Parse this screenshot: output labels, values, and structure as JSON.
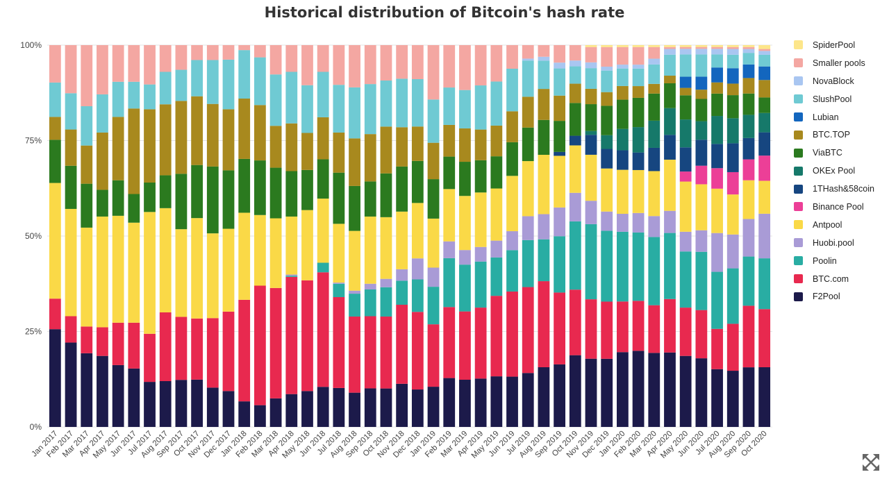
{
  "chart_data": {
    "type": "bar",
    "stacked": true,
    "normalized": true,
    "title": "Historical distribution of Bitcoin's hash rate",
    "xlabel": "",
    "ylabel": "",
    "ylim": [
      0,
      100
    ],
    "yticks": [
      "0%",
      "25%",
      "50%",
      "75%",
      "100%"
    ],
    "grid": true,
    "legend_position": "right",
    "categories": [
      "Jan 2017",
      "Feb 2017",
      "Mar 2017",
      "Apr 2017",
      "May 2017",
      "Jun 2017",
      "Jul 2017",
      "Aug 2017",
      "Sep 2017",
      "Oct 2017",
      "Nov 2017",
      "Dec 2017",
      "Jan 2018",
      "Feb 2018",
      "Mar 2018",
      "Apr 2018",
      "May 2018",
      "Jun 2018",
      "Jul 2018",
      "Aug 2018",
      "Sep 2018",
      "Oct 2018",
      "Nov 2018",
      "Dec 2018",
      "Jan 2019",
      "Feb 2019",
      "Mar 2019",
      "Apr 2019",
      "May 2019",
      "Jun 2019",
      "Jul 2019",
      "Aug 2019",
      "Sep 2019",
      "Oct 2019",
      "Nov 2019",
      "Dec 2019",
      "Jan 2020",
      "Feb 2020",
      "Mar 2020",
      "Apr 2020",
      "May 2020",
      "Jun 2020",
      "Jul 2020",
      "Aug 2020",
      "Sep 2020",
      "Oct 2020"
    ],
    "series": [
      {
        "name": "F2Pool",
        "color": "#1c1a4a",
        "values": [
          25.6,
          22.1,
          19.3,
          18.6,
          16.2,
          15.3,
          11.8,
          12.0,
          12.4,
          12.4,
          10.3,
          9.4,
          6.7,
          5.7,
          7.5,
          8.6,
          9.4,
          10.5,
          10.2,
          9.0,
          10.1,
          10.1,
          11.3,
          9.8,
          10.5,
          12.8,
          12.3,
          12.6,
          13.2,
          13.0,
          14.0,
          15.4,
          16.1,
          18.6,
          17.8,
          17.4,
          19.2,
          19.5,
          19.1,
          19.5,
          19.1,
          18.5,
          15.5,
          14.6,
          15.4,
          15.4
        ]
      },
      {
        "name": "BTC.com",
        "color": "#e8294f",
        "values": [
          8.0,
          6.9,
          7.0,
          7.5,
          11.1,
          12.0,
          12.6,
          18.0,
          16.6,
          16.0,
          18.2,
          20.8,
          26.6,
          31.3,
          29.0,
          30.7,
          29.0,
          30.0,
          23.8,
          20.0,
          18.9,
          18.9,
          20.7,
          20.3,
          16.3,
          18.6,
          17.8,
          18.5,
          21.0,
          22.0,
          22.3,
          22.2,
          18.5,
          17.0,
          15.5,
          14.6,
          13.0,
          12.8,
          12.3,
          14.0,
          13.0,
          13.0,
          10.8,
          12.2,
          15.9,
          15.0
        ]
      },
      {
        "name": "Poolin",
        "color": "#29ada3",
        "values": [
          0,
          0,
          0,
          0,
          0,
          0,
          0,
          0,
          0,
          0,
          0,
          0,
          0,
          0,
          0,
          0.3,
          0,
          2.5,
          3.5,
          6.0,
          7.0,
          7.7,
          6.3,
          8.5,
          9.8,
          12.8,
          12.2,
          12.0,
          10.0,
          10.7,
          12.2,
          10.8,
          14.5,
          17.7,
          19.6,
          18.1,
          17.9,
          17.5,
          17.6,
          17.3,
          15.1,
          15.7,
          15.3,
          14.4,
          12.7,
          13.1
        ]
      },
      {
        "name": "Huobi.pool",
        "color": "#a99bd6",
        "values": [
          0,
          0,
          0,
          0,
          0,
          0,
          0,
          0,
          0,
          0,
          0,
          0,
          0,
          0,
          0,
          0.3,
          0,
          0,
          0.3,
          0.8,
          1.5,
          2.2,
          3.0,
          5.5,
          5.0,
          4.4,
          3.8,
          3.8,
          4.4,
          4.9,
          6.2,
          6.5,
          7.4,
          7.4,
          6.1,
          4.9,
          4.6,
          5.0,
          5.4,
          5.8,
          5.3,
          5.8,
          10.4,
          8.8,
          9.7,
          11.5
        ]
      },
      {
        "name": "Antpool",
        "color": "#fad947",
        "values": [
          30.3,
          28.1,
          25.9,
          29.0,
          28.0,
          26.2,
          31.9,
          27.3,
          23.1,
          26.3,
          22.2,
          21.7,
          22.8,
          18.5,
          18.3,
          15.2,
          18.4,
          16.8,
          15.4,
          15.7,
          17.6,
          16.2,
          15.1,
          14.5,
          12.8,
          13.7,
          14.1,
          14.2,
          13.6,
          14.3,
          14.3,
          15.3,
          13.3,
          12.3,
          12.0,
          11.0,
          11.3,
          11.0,
          11.6,
          13.4,
          13.5,
          12.4,
          11.9,
          10.4,
          10.0,
          8.5
        ]
      },
      {
        "name": "Binance Pool",
        "color": "#ec3f97",
        "values": [
          0,
          0,
          0,
          0,
          0,
          0,
          0,
          0,
          0,
          0,
          0,
          0,
          0,
          0,
          0,
          0,
          0,
          0,
          0,
          0,
          0,
          0,
          0,
          0,
          0,
          0,
          0,
          0,
          0,
          0,
          0,
          0,
          0,
          0,
          0,
          0,
          0,
          0,
          0,
          0,
          2.7,
          5.0,
          5.5,
          5.8,
          5.4,
          6.5
        ]
      },
      {
        "name": "1THash&58coin",
        "color": "#164680",
        "values": [
          0,
          0,
          0,
          0,
          0,
          0,
          0,
          0,
          0,
          0,
          0,
          0,
          0,
          0,
          0,
          0,
          0,
          0,
          0,
          0,
          0,
          0,
          0,
          0,
          0,
          0,
          0,
          0,
          0,
          0,
          0,
          0,
          1.0,
          2.5,
          5.2,
          5.0,
          5.0,
          4.5,
          6.0,
          6.5,
          6.5,
          7.0,
          6.5,
          7.5,
          5.5,
          6.0
        ]
      },
      {
        "name": "OKEx Pool",
        "color": "#16796a",
        "values": [
          0,
          0,
          0,
          0,
          0,
          0,
          0,
          0,
          0,
          0,
          0,
          0,
          0,
          0,
          0,
          0,
          0,
          0,
          0,
          0,
          0,
          0,
          0,
          0,
          0,
          0,
          0,
          0,
          0,
          0,
          0,
          0,
          0,
          0,
          1.0,
          3.5,
          5.5,
          6.5,
          7.0,
          7.0,
          7.5,
          5.0,
          7.5,
          6.5,
          6.0,
          5.0
        ]
      },
      {
        "name": "ViaBTC",
        "color": "#2b7a1f",
        "values": [
          11.3,
          11.3,
          11.5,
          7.0,
          9.3,
          7.5,
          7.7,
          8.6,
          14.6,
          13.9,
          17.5,
          15.3,
          14.1,
          14.3,
          13.3,
          11.9,
          10.5,
          10.3,
          13.4,
          11.8,
          9.2,
          11.5,
          11.8,
          11.0,
          10.3,
          8.5,
          8.9,
          8.4,
          8.4,
          8.7,
          8.7,
          9.0,
          8.0,
          8.5,
          7.0,
          7.5,
          7.5,
          7.5,
          7.0,
          6.5,
          6.5,
          6.0,
          6.0,
          6.0,
          5.5,
          4.0
        ]
      },
      {
        "name": "BTC.TOP",
        "color": "#a8891e",
        "values": [
          6.0,
          9.5,
          10.0,
          15.0,
          16.6,
          22.4,
          19.2,
          18.6,
          19.2,
          18.0,
          16.4,
          16.0,
          15.8,
          14.5,
          11.0,
          12.5,
          9.7,
          11.0,
          10.5,
          12.5,
          12.4,
          12.3,
          10.3,
          9.0,
          9.5,
          8.3,
          8.7,
          8.0,
          8.0,
          8.0,
          8.0,
          8.0,
          6.5,
          5.0,
          4.0,
          3.5,
          3.5,
          3.0,
          2.5,
          2.0,
          2.0,
          2.5,
          3.0,
          3.0,
          4.0,
          4.5
        ]
      },
      {
        "name": "Lubian",
        "color": "#1366be",
        "values": [
          0,
          0,
          0,
          0,
          0,
          0,
          0,
          0,
          0,
          0,
          0,
          0,
          0,
          0,
          0,
          0,
          0,
          0,
          0,
          0,
          0,
          0,
          0,
          0,
          0,
          0,
          0,
          0,
          0,
          0,
          0,
          0,
          0,
          0,
          0,
          0,
          0,
          0,
          0,
          0,
          3.0,
          3.5,
          4.0,
          4.0,
          3.5,
          3.5
        ]
      },
      {
        "name": "SlushPool",
        "color": "#6fcad3",
        "values": [
          9.0,
          9.5,
          10.3,
          10.0,
          9.2,
          7.0,
          6.5,
          8.5,
          8.2,
          9.5,
          11.5,
          13.0,
          12.7,
          12.5,
          13.5,
          13.5,
          12.5,
          11.9,
          12.5,
          13.4,
          13.1,
          12.1,
          12.7,
          12.4,
          11.3,
          9.8,
          10.0,
          11.5,
          11.5,
          11.0,
          9.4,
          7.3,
          7.0,
          4.5,
          5.4,
          5.5,
          4.5,
          4.5,
          5.0,
          5.5,
          6.0,
          6.0,
          3.5,
          3.5,
          3.0,
          3.0
        ]
      },
      {
        "name": "NovaBlock",
        "color": "#a9c6f1",
        "values": [
          0,
          0,
          0,
          0,
          0,
          0,
          0,
          0,
          0,
          0,
          0,
          0,
          0,
          0,
          0,
          0,
          0,
          0,
          0,
          0,
          0,
          0,
          0,
          0,
          0,
          0,
          0,
          0,
          0,
          0,
          0.5,
          1.0,
          1.5,
          1.5,
          1.5,
          1.0,
          1.0,
          1.0,
          1.5,
          1.5,
          1.5,
          1.5,
          1.5,
          1.5,
          1.0,
          1.0
        ]
      },
      {
        "name": "Smaller pools",
        "color": "#f4a7a2",
        "values": [
          9.8,
          12.6,
          16.0,
          12.9,
          9.6,
          9.6,
          10.3,
          7.0,
          6.5,
          3.9,
          3.9,
          3.8,
          1.3,
          3.2,
          7.7,
          7.0,
          10.5,
          7.0,
          10.4,
          11.1,
          10.2,
          9.3,
          8.8,
          8.9,
          14.2,
          11.1,
          11.7,
          10.5,
          9.5,
          6.1,
          3.5,
          3.0,
          4.5,
          4.0,
          4.0,
          5.0,
          4.5,
          4.5,
          3.0,
          0.5,
          0.5,
          0.5,
          0.5,
          0.5,
          0.5,
          0.5
        ]
      },
      {
        "name": "SpiderPool",
        "color": "#fde68a",
        "values": [
          0,
          0,
          0,
          0,
          0,
          0,
          0,
          0,
          0,
          0,
          0,
          0,
          0,
          0,
          0,
          0,
          0,
          0,
          0,
          0,
          0,
          0,
          0,
          0,
          0,
          0,
          0,
          0,
          0,
          0,
          0,
          0,
          0,
          0,
          0.5,
          0.5,
          0.5,
          0.5,
          0.5,
          0.5,
          0.5,
          0.5,
          0.5,
          0.5,
          0.5,
          1.0
        ]
      }
    ]
  },
  "legend_order": [
    "SpiderPool",
    "Smaller pools",
    "NovaBlock",
    "SlushPool",
    "Lubian",
    "BTC.TOP",
    "ViaBTC",
    "OKEx Pool",
    "1THash&58coin",
    "Binance Pool",
    "Antpool",
    "Huobi.pool",
    "Poolin",
    "BTC.com",
    "F2Pool"
  ],
  "icons": {
    "expand": "expand-arrows-icon"
  }
}
